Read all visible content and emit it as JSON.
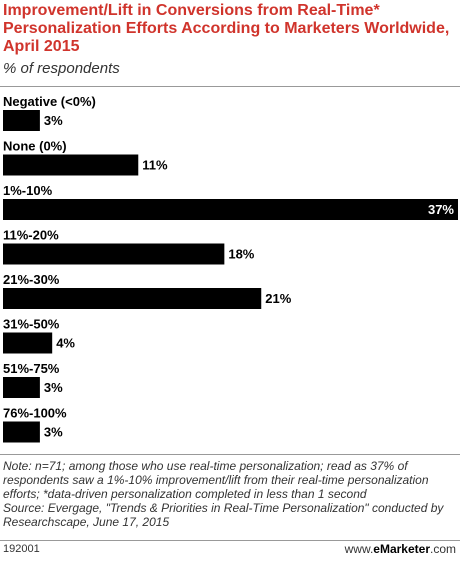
{
  "header": {
    "title": "Improvement/Lift in Conversions from Real-Time* Personalization Efforts According to Marketers Worldwide, April 2015",
    "subtitle": "% of respondents"
  },
  "chart_data": {
    "type": "bar",
    "orientation": "horizontal",
    "categories": [
      "Negative (<0%)",
      "None (0%)",
      "1%-10%",
      "11%-20%",
      "21%-30%",
      "31%-50%",
      "51%-75%",
      "76%-100%"
    ],
    "values": [
      3,
      11,
      37,
      18,
      21,
      4,
      3,
      3
    ],
    "value_labels": [
      "3%",
      "11%",
      "37%",
      "18%",
      "21%",
      "4%",
      "3%",
      "3%"
    ],
    "xlim": [
      0,
      37
    ],
    "grid": false,
    "legend": "none",
    "bar_color": "#000000"
  },
  "note": {
    "line1": "Note: n=71; among those who use real-time personalization; read as 37% of respondents saw a 1%-10% improvement/lift from their real-time personalization efforts; *data-driven personalization completed in less than 1 second",
    "line2": "Source: Evergage, \"Trends & Priorities in Real-Time Personalization\" conducted by Researchscape, June 17, 2015"
  },
  "footer": {
    "chart_id": "192001",
    "brand_prefix": "www.",
    "brand_name": "eMarketer",
    "brand_suffix": ".com"
  },
  "colors": {
    "title": "#d0342c",
    "bar": "#000000",
    "value_label_on_bar": "#ffffff",
    "rule": "#999999"
  }
}
